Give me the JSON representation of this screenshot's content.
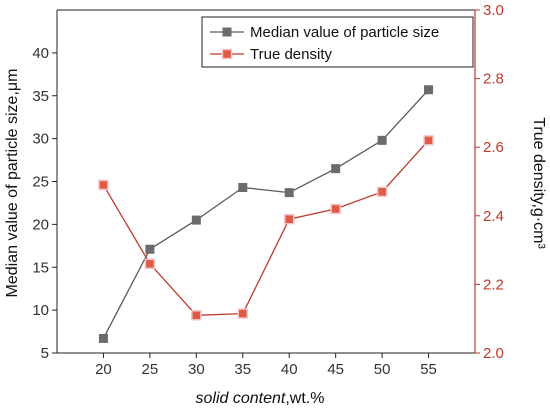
{
  "chart_data": {
    "type": "line",
    "x": [
      20,
      25,
      30,
      35,
      40,
      45,
      50,
      55
    ],
    "xlabel_italic": "solid content",
    "xlabel_rest": ",wt.%",
    "ylabel": "Median value of particle size,μm",
    "y2label": "True density,g·cm³",
    "xlim": [
      15,
      60
    ],
    "ylim": [
      5,
      45
    ],
    "y2lim": [
      2.0,
      3.0
    ],
    "xticks": [
      20,
      25,
      30,
      35,
      40,
      45,
      50,
      55
    ],
    "yticks": [
      5,
      10,
      15,
      20,
      25,
      30,
      35,
      40
    ],
    "y2ticks": [
      "2.0",
      "2.2",
      "2.4",
      "2.6",
      "2.8",
      "3.0"
    ],
    "legend_position": "top-right",
    "series": [
      {
        "name": "Median value of particle size",
        "axis": "left",
        "color": "#5a5a5a",
        "marker_fill": "#6b6b6b",
        "values": [
          6.7,
          17.1,
          20.5,
          24.3,
          23.7,
          26.5,
          29.8,
          35.7
        ]
      },
      {
        "name": "True density",
        "axis": "right",
        "color": "#c0392b",
        "marker_fill": "#e05a45",
        "values": [
          2.49,
          2.26,
          2.11,
          2.115,
          2.39,
          2.42,
          2.47,
          2.62
        ]
      }
    ],
    "right_axis_color": "#c0392b"
  }
}
